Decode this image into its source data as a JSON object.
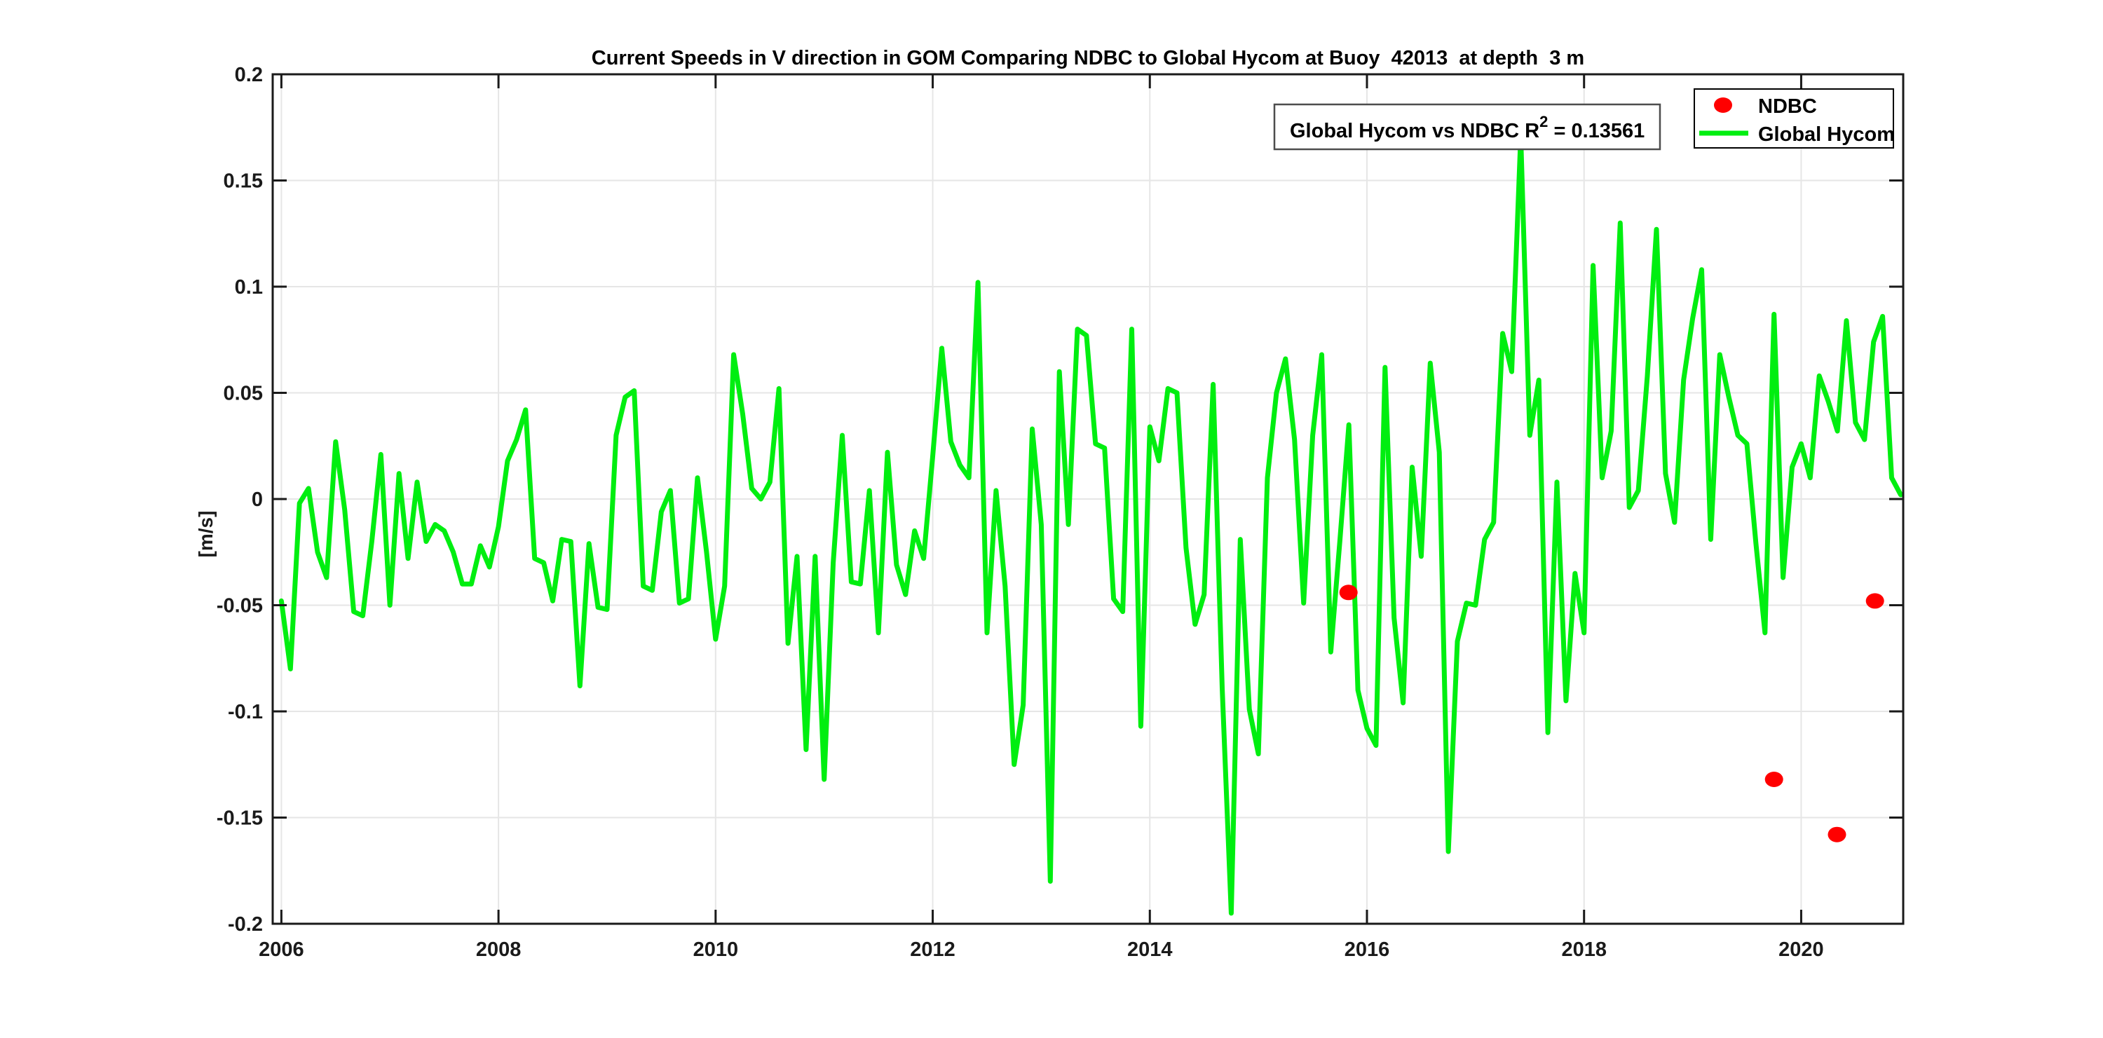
{
  "title": "Current Speeds in V direction in GOM Comparing NDBC to Global Hycom at Buoy  42013  at depth  3 m",
  "ylabel": "[m/s]",
  "annotation": {
    "prefix": "Global Hycom vs NDBC R",
    "sup": "2",
    "suffix": " = 0.13561",
    "r_squared": 0.13561
  },
  "legend": {
    "items": [
      {
        "label": "NDBC",
        "marker": "dot",
        "color": "#ff0000"
      },
      {
        "label": "Global Hycom",
        "marker": "line",
        "color": "#00ee10"
      }
    ]
  },
  "colors": {
    "background": "#ffffff",
    "axis_border": "#1a1a1a",
    "grid": "#e6e6e6",
    "hycom_green": "#00ee10",
    "ndbc_red": "#ff0000",
    "annotation_border": "#4d4d4d",
    "tick_text": "#1a1a1a"
  },
  "chart_data": {
    "type": "line",
    "title": "Current Speeds in V direction in GOM Comparing NDBC to Global Hycom at Buoy  42013  at depth  3 m",
    "xlabel": "",
    "ylabel": "[m/s]",
    "xlim": [
      2005.92,
      2020.94
    ],
    "ylim": [
      -0.2,
      0.2
    ],
    "grid": true,
    "legend_position": "top-right",
    "xticks": [
      {
        "v": 2006,
        "label": "2006"
      },
      {
        "v": 2008,
        "label": "2008"
      },
      {
        "v": 2010,
        "label": "2010"
      },
      {
        "v": 2012,
        "label": "2012"
      },
      {
        "v": 2014,
        "label": "2014"
      },
      {
        "v": 2016,
        "label": "2016"
      },
      {
        "v": 2018,
        "label": "2018"
      },
      {
        "v": 2020,
        "label": "2020"
      }
    ],
    "yticks": [
      {
        "v": 0.2,
        "label": "0.2"
      },
      {
        "v": 0.15,
        "label": "0.15"
      },
      {
        "v": 0.1,
        "label": "0.1"
      },
      {
        "v": 0.05,
        "label": "0.05"
      },
      {
        "v": 0,
        "label": "0"
      },
      {
        "v": -0.05,
        "label": "-0.05"
      },
      {
        "v": -0.1,
        "label": "-0.1"
      },
      {
        "v": -0.15,
        "label": "-0.15"
      },
      {
        "v": -0.2,
        "label": "-0.2"
      }
    ],
    "series": [
      {
        "name": "Global Hycom",
        "type": "line",
        "color": "#00ee10",
        "x_start": 2006.0,
        "x_step": 0.0833333,
        "values": [
          -0.048,
          -0.08,
          -0.002,
          0.005,
          -0.025,
          -0.037,
          0.027,
          -0.005,
          -0.053,
          -0.055,
          -0.02,
          0.021,
          -0.05,
          0.012,
          -0.028,
          0.008,
          -0.02,
          -0.012,
          -0.015,
          -0.025,
          -0.04,
          -0.04,
          -0.022,
          -0.032,
          -0.013,
          0.018,
          0.028,
          0.042,
          -0.028,
          -0.03,
          -0.048,
          -0.019,
          -0.02,
          -0.088,
          -0.021,
          -0.051,
          -0.052,
          0.03,
          0.048,
          0.051,
          -0.041,
          -0.043,
          -0.006,
          0.004,
          -0.049,
          -0.047,
          0.01,
          -0.025,
          -0.066,
          -0.041,
          0.068,
          0.04,
          0.005,
          0.0,
          0.008,
          0.052,
          -0.068,
          -0.027,
          -0.118,
          -0.027,
          -0.132,
          -0.03,
          0.03,
          -0.039,
          -0.04,
          0.004,
          -0.063,
          0.022,
          -0.031,
          -0.045,
          -0.015,
          -0.028,
          0.02,
          0.071,
          0.027,
          0.016,
          0.01,
          0.102,
          -0.063,
          0.004,
          -0.041,
          -0.125,
          -0.097,
          0.033,
          -0.012,
          -0.18,
          0.06,
          -0.012,
          0.08,
          0.077,
          0.026,
          0.024,
          -0.047,
          -0.053,
          0.08,
          -0.107,
          0.034,
          0.018,
          0.052,
          0.05,
          -0.023,
          -0.059,
          -0.045,
          0.054,
          -0.089,
          -0.195,
          -0.019,
          -0.099,
          -0.12,
          0.01,
          0.05,
          0.066,
          0.028,
          -0.049,
          0.03,
          0.068,
          -0.072,
          -0.02,
          0.035,
          -0.09,
          -0.108,
          -0.116,
          0.062,
          -0.056,
          -0.096,
          0.015,
          -0.027,
          0.064,
          0.022,
          -0.166,
          -0.067,
          -0.049,
          -0.05,
          -0.019,
          -0.011,
          0.078,
          0.06,
          0.171,
          0.03,
          0.056,
          -0.11,
          0.008,
          -0.095,
          -0.035,
          -0.063,
          0.11,
          0.01,
          0.032,
          0.13,
          -0.004,
          0.004,
          0.058,
          0.127,
          0.012,
          -0.011,
          0.056,
          0.085,
          0.108,
          -0.019,
          0.068,
          0.048,
          0.03,
          0.026,
          -0.021,
          -0.063,
          0.087,
          -0.037,
          0.015,
          0.026,
          0.01,
          0.058,
          0.046,
          0.032,
          0.084,
          0.036,
          0.028,
          0.074,
          0.086,
          0.01,
          0.002
        ]
      },
      {
        "name": "NDBC",
        "type": "scatter",
        "color": "#ff0000",
        "points": [
          [
            2015.83,
            -0.044
          ],
          [
            2019.75,
            -0.132
          ],
          [
            2020.33,
            -0.158
          ],
          [
            2020.68,
            -0.048
          ]
        ]
      }
    ]
  }
}
